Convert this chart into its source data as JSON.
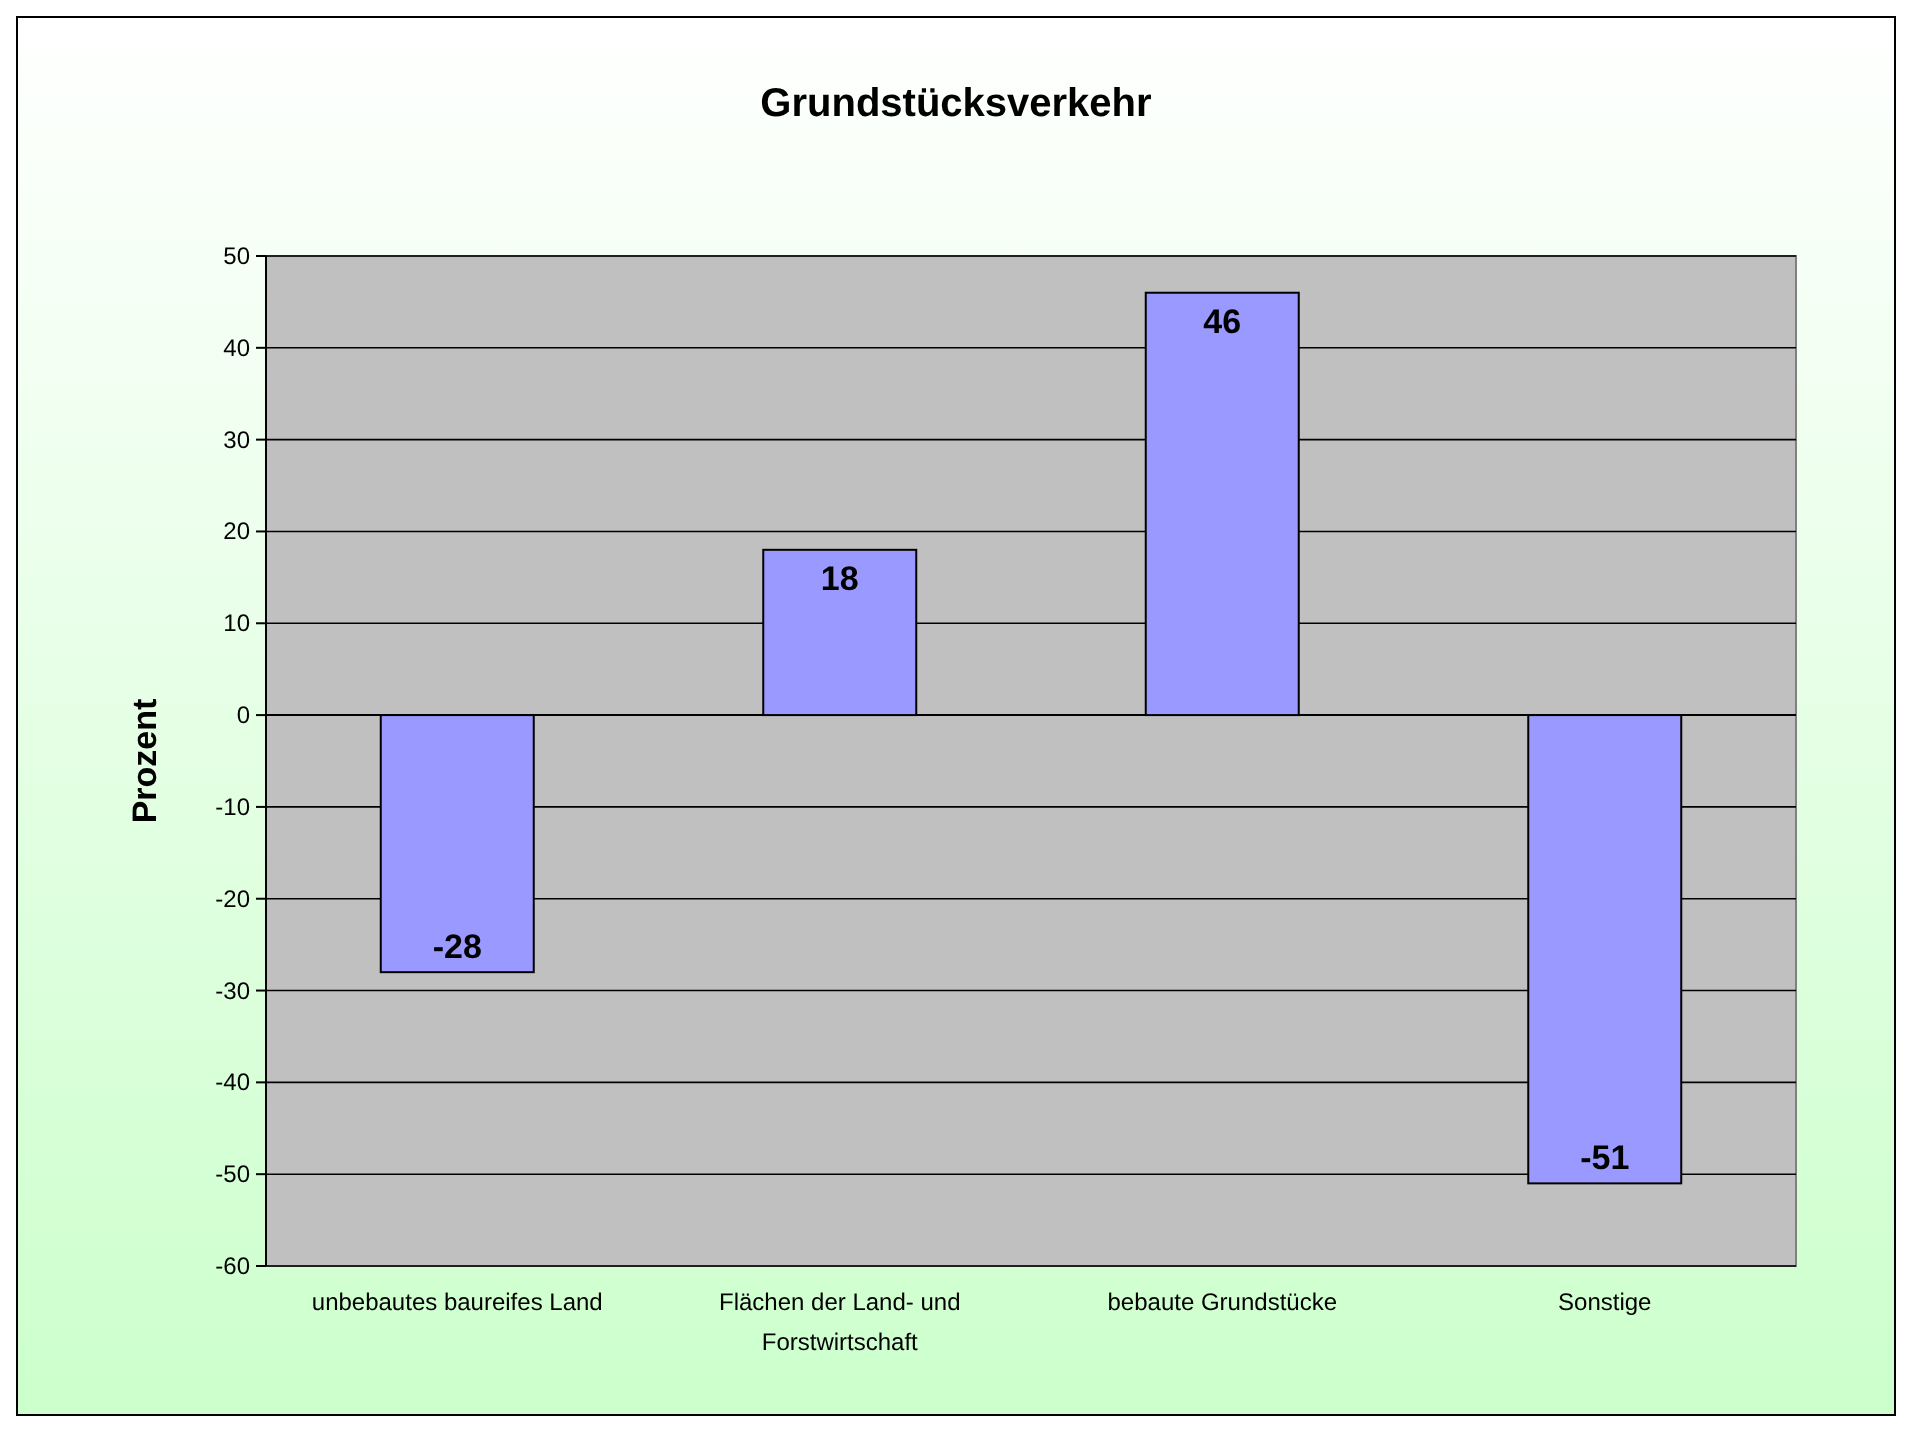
{
  "chart_data": {
    "type": "bar",
    "title": "Grundstücksverkehr",
    "ylabel": "Prozent",
    "categories": [
      "unbebautes baureifes Land",
      "Flächen der Land- und Forstwirtschaft",
      "bebaute Grundstücke",
      "Sonstige"
    ],
    "values": [
      -28,
      18,
      46,
      -51
    ],
    "color": "#9999ff",
    "ylim": [
      -60,
      50
    ],
    "yticks": [
      -60,
      -50,
      -40,
      -30,
      -20,
      -10,
      0,
      10,
      20,
      30,
      40,
      50
    ],
    "grid": "y",
    "data_labels": true
  }
}
